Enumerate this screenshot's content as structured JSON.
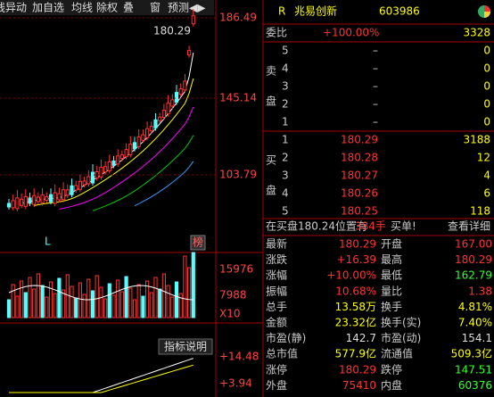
{
  "toolbar": [
    "线异动",
    "加自选",
    "均线",
    "除权",
    "叠",
    "窗",
    "预测"
  ],
  "price_axis": [
    "186.49",
    "145.14",
    "103.79"
  ],
  "last_price_tag": "180.29",
  "low_marker": "L",
  "rank_button": "榜",
  "volume_axis": [
    "15976",
    "7988",
    "X10"
  ],
  "indicator_button": "指标说明",
  "indicator_axis": [
    "+14.48",
    "+3.94"
  ],
  "header": {
    "badge": "R",
    "name": "兆易创新",
    "code": "603986"
  },
  "order_ratio": {
    "label": "委比",
    "percent": "+100.00%",
    "diff": "3328"
  },
  "ask_label": [
    "卖",
    "盘"
  ],
  "bid_label": [
    "买",
    "盘"
  ],
  "asks": [
    {
      "level": "5",
      "price": "–",
      "volume": "0"
    },
    {
      "level": "4",
      "price": "–",
      "volume": "0"
    },
    {
      "level": "3",
      "price": "–",
      "volume": "0"
    },
    {
      "level": "2",
      "price": "–",
      "volume": "0"
    },
    {
      "level": "1",
      "price": "–",
      "volume": "0"
    }
  ],
  "bids": [
    {
      "level": "1",
      "price": "180.29",
      "volume": "3188"
    },
    {
      "level": "2",
      "price": "180.28",
      "volume": "12"
    },
    {
      "level": "3",
      "price": "180.27",
      "volume": "4"
    },
    {
      "level": "4",
      "price": "180.26",
      "volume": "6"
    },
    {
      "level": "5",
      "price": "180.25",
      "volume": "118"
    }
  ],
  "notice": {
    "text": "在买盘180.24位置有",
    "volume": "384手",
    "suffix": "买单!",
    "link": "查看详细"
  },
  "stats": [
    [
      "最新",
      "180.29",
      "开盘",
      "167.00"
    ],
    [
      "涨跌",
      "+16.39",
      "最高",
      "180.29"
    ],
    [
      "涨幅",
      "+10.00%",
      "最低",
      "162.79"
    ],
    [
      "振幅",
      "10.68%",
      "量比",
      "1.38"
    ],
    [
      "总手",
      "13.58万",
      "换手",
      "4.81%"
    ],
    [
      "金额",
      "23.32亿",
      "换手(实)",
      "7.40%"
    ],
    [
      "市盈(静)",
      "142.7",
      "市盈(动)",
      "154.1"
    ],
    [
      "总市值",
      "577.9亿",
      "流通值",
      "509.3亿"
    ],
    [
      "涨停",
      "180.29",
      "跌停",
      "147.51"
    ],
    [
      "外盘",
      "75410",
      "内盘",
      "60376"
    ]
  ]
}
